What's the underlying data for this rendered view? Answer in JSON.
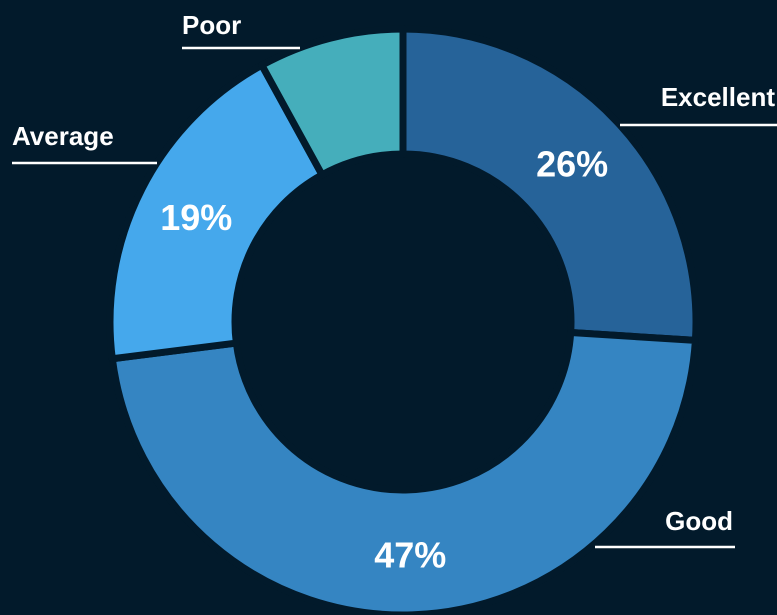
{
  "chart_data": {
    "type": "donut",
    "categories": [
      "Excellent",
      "Good",
      "Average",
      "Poor"
    ],
    "values": [
      26,
      47,
      19,
      8
    ],
    "value_labels": [
      "26%",
      "47%",
      "19%",
      null
    ],
    "colors": [
      "#266399",
      "#3585c2",
      "#45a8ec",
      "#45aebb"
    ]
  }
}
